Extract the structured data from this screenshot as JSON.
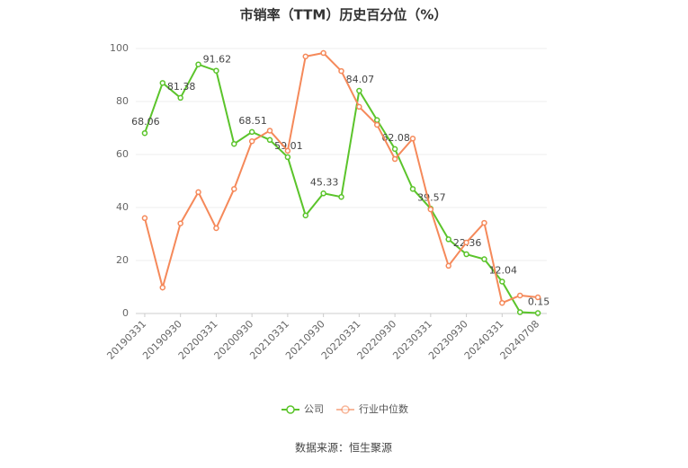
{
  "chart_data": {
    "type": "line",
    "title": "市销率（TTM）历史百分位（%）",
    "categories": [
      "20190331",
      null,
      "20190930",
      null,
      "20200331",
      null,
      "20200930",
      null,
      "20210331",
      null,
      "20210930",
      null,
      "20220331",
      null,
      "20220930",
      null,
      "20230331",
      null,
      "20230930",
      null,
      "20240331",
      null,
      "20240708"
    ],
    "series": [
      {
        "name": "公司",
        "color": "#5bc42b",
        "values": [
          68.06,
          87,
          81.38,
          94,
          91.62,
          64,
          68.51,
          65.5,
          59.01,
          37,
          45.33,
          44,
          84.07,
          73,
          62.08,
          47,
          39.57,
          28,
          22.36,
          20.5,
          12.04,
          0.5,
          0.15
        ]
      },
      {
        "name": "行业中位数",
        "color": "#f5895a",
        "values": [
          36,
          9.8,
          34,
          45.8,
          32.2,
          47,
          65,
          69,
          61.4,
          97,
          98.3,
          91.5,
          78,
          71.2,
          58.3,
          66,
          39.3,
          18,
          26.8,
          34.2,
          4,
          6.8,
          6.1
        ]
      }
    ],
    "ylim": [
      0,
      100
    ],
    "yticks": [
      0,
      20,
      40,
      60,
      80,
      100
    ],
    "grid": true,
    "legend": "bottom",
    "source": "数据来源：恒生聚源"
  }
}
